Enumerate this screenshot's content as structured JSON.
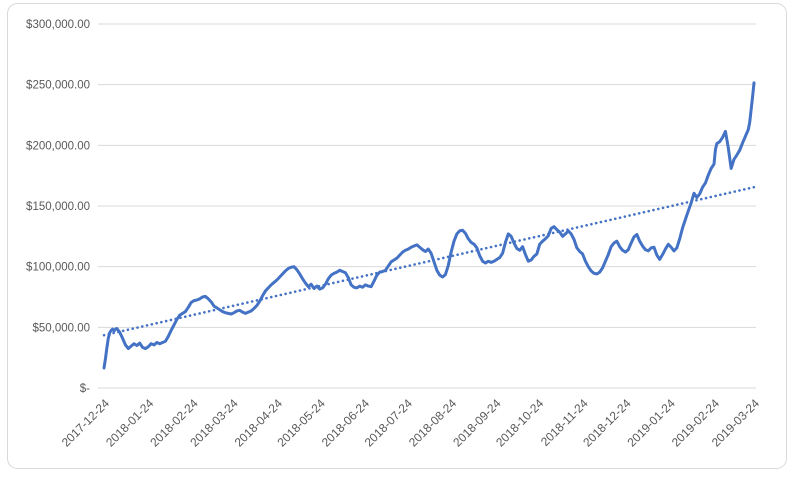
{
  "chart": {
    "title": "",
    "legend": "none",
    "colors": {
      "background": "#ffffff",
      "chart_border": "#d9d9d9",
      "gridline": "#d9d9d9",
      "axis_line": "#d9d9d9",
      "tick_label": "#595959",
      "series_line": "#4472c4",
      "trendline": "#4472c4"
    }
  },
  "chart_data": {
    "type": "line",
    "title": "",
    "xlabel": "",
    "ylabel": "",
    "grid": true,
    "legend_position": "none",
    "ylim": [
      0,
      300000
    ],
    "y_axis": {
      "tick_values": [
        300000,
        250000,
        200000,
        150000,
        100000,
        50000,
        0
      ],
      "tick_labels": [
        "$300,000.00",
        "$250,000.00",
        "$200,000.00",
        "$150,000.00",
        "$100,000.00",
        "$50,000.00",
        "$-"
      ]
    },
    "x_axis": {
      "start_date": "2017-12-24",
      "end_date": "2019-03-24",
      "label_rotation_deg": 45,
      "tick_labels": [
        "2017-12-24",
        "2018-01-24",
        "2018-02-24",
        "2018-03-24",
        "2018-04-24",
        "2018-05-24",
        "2018-06-24",
        "2018-07-24",
        "2018-08-24",
        "2018-09-24",
        "2018-10-24",
        "2018-11-24",
        "2018-12-24",
        "2019-01-24",
        "2019-02-24",
        "2019-03-24"
      ]
    },
    "series": [
      {
        "name": "value",
        "type": "line",
        "color": "#4472c4",
        "points": [
          [
            "2017-12-24",
            16500
          ],
          [
            "2017-12-25",
            24000
          ],
          [
            "2017-12-26",
            33000
          ],
          [
            "2017-12-27",
            41000
          ],
          [
            "2017-12-28",
            45500
          ],
          [
            "2017-12-29",
            47500
          ],
          [
            "2017-12-30",
            48500
          ],
          [
            "2017-12-31",
            47000
          ],
          [
            "2018-01-01",
            48500
          ],
          [
            "2018-01-02",
            49000
          ],
          [
            "2018-01-03",
            47500
          ],
          [
            "2018-01-04",
            46000
          ],
          [
            "2018-01-06",
            41000
          ],
          [
            "2018-01-08",
            35500
          ],
          [
            "2018-01-10",
            32500
          ],
          [
            "2018-01-12",
            34500
          ],
          [
            "2018-01-14",
            36500
          ],
          [
            "2018-01-16",
            35000
          ],
          [
            "2018-01-18",
            37000
          ],
          [
            "2018-01-20",
            33500
          ],
          [
            "2018-01-22",
            32500
          ],
          [
            "2018-01-24",
            34000
          ],
          [
            "2018-01-26",
            36500
          ],
          [
            "2018-01-28",
            35500
          ],
          [
            "2018-01-30",
            37500
          ],
          [
            "2018-02-01",
            36500
          ],
          [
            "2018-02-03",
            37500
          ],
          [
            "2018-02-05",
            38500
          ],
          [
            "2018-02-07",
            42500
          ],
          [
            "2018-02-09",
            47500
          ],
          [
            "2018-02-11",
            52000
          ],
          [
            "2018-02-13",
            56500
          ],
          [
            "2018-02-15",
            60000
          ],
          [
            "2018-02-17",
            61500
          ],
          [
            "2018-02-19",
            63000
          ],
          [
            "2018-02-21",
            66500
          ],
          [
            "2018-02-23",
            70500
          ],
          [
            "2018-02-25",
            72000
          ],
          [
            "2018-02-27",
            72500
          ],
          [
            "2018-03-01",
            73500
          ],
          [
            "2018-03-03",
            75000
          ],
          [
            "2018-03-05",
            75500
          ],
          [
            "2018-03-07",
            73500
          ],
          [
            "2018-03-09",
            71000
          ],
          [
            "2018-03-11",
            67500
          ],
          [
            "2018-03-13",
            66000
          ],
          [
            "2018-03-15",
            64500
          ],
          [
            "2018-03-17",
            63000
          ],
          [
            "2018-03-19",
            62000
          ],
          [
            "2018-03-21",
            61500
          ],
          [
            "2018-03-23",
            61000
          ],
          [
            "2018-03-25",
            62000
          ],
          [
            "2018-03-27",
            63500
          ],
          [
            "2018-03-29",
            64000
          ],
          [
            "2018-03-31",
            62500
          ],
          [
            "2018-04-02",
            61500
          ],
          [
            "2018-04-04",
            62500
          ],
          [
            "2018-04-06",
            63500
          ],
          [
            "2018-04-08",
            65500
          ],
          [
            "2018-04-10",
            68000
          ],
          [
            "2018-04-12",
            71500
          ],
          [
            "2018-04-14",
            76000
          ],
          [
            "2018-04-16",
            80000
          ],
          [
            "2018-04-18",
            82500
          ],
          [
            "2018-04-20",
            85000
          ],
          [
            "2018-04-22",
            87000
          ],
          [
            "2018-04-24",
            89000
          ],
          [
            "2018-04-26",
            91500
          ],
          [
            "2018-04-28",
            94000
          ],
          [
            "2018-04-30",
            96500
          ],
          [
            "2018-05-02",
            98500
          ],
          [
            "2018-05-04",
            99500
          ],
          [
            "2018-05-06",
            100000
          ],
          [
            "2018-05-08",
            97500
          ],
          [
            "2018-05-10",
            94000
          ],
          [
            "2018-05-12",
            90000
          ],
          [
            "2018-05-14",
            86500
          ],
          [
            "2018-05-16",
            83500
          ],
          [
            "2018-05-18",
            85500
          ],
          [
            "2018-05-20",
            82000
          ],
          [
            "2018-05-22",
            84000
          ],
          [
            "2018-05-24",
            81500
          ],
          [
            "2018-05-26",
            82500
          ],
          [
            "2018-05-28",
            85500
          ],
          [
            "2018-05-30",
            90000
          ],
          [
            "2018-06-01",
            93000
          ],
          [
            "2018-06-03",
            94500
          ],
          [
            "2018-06-05",
            95500
          ],
          [
            "2018-06-07",
            97000
          ],
          [
            "2018-06-09",
            96000
          ],
          [
            "2018-06-11",
            95000
          ],
          [
            "2018-06-13",
            91000
          ],
          [
            "2018-06-15",
            85000
          ],
          [
            "2018-06-17",
            83000
          ],
          [
            "2018-06-19",
            82500
          ],
          [
            "2018-06-21",
            84000
          ],
          [
            "2018-06-23",
            83000
          ],
          [
            "2018-06-25",
            85000
          ],
          [
            "2018-06-27",
            84000
          ],
          [
            "2018-06-29",
            83500
          ],
          [
            "2018-07-01",
            88000
          ],
          [
            "2018-07-03",
            93000
          ],
          [
            "2018-07-05",
            95500
          ],
          [
            "2018-07-07",
            96000
          ],
          [
            "2018-07-09",
            97000
          ],
          [
            "2018-07-11",
            100500
          ],
          [
            "2018-07-13",
            104000
          ],
          [
            "2018-07-15",
            105500
          ],
          [
            "2018-07-17",
            107000
          ],
          [
            "2018-07-19",
            109500
          ],
          [
            "2018-07-21",
            112000
          ],
          [
            "2018-07-23",
            113500
          ],
          [
            "2018-07-25",
            114500
          ],
          [
            "2018-07-27",
            116000
          ],
          [
            "2018-07-29",
            117000
          ],
          [
            "2018-07-31",
            118000
          ],
          [
            "2018-08-02",
            116000
          ],
          [
            "2018-08-04",
            114000
          ],
          [
            "2018-08-06",
            112500
          ],
          [
            "2018-08-08",
            114500
          ],
          [
            "2018-08-10",
            111000
          ],
          [
            "2018-08-12",
            104000
          ],
          [
            "2018-08-14",
            97000
          ],
          [
            "2018-08-16",
            93000
          ],
          [
            "2018-08-18",
            91500
          ],
          [
            "2018-08-20",
            93500
          ],
          [
            "2018-08-22",
            101000
          ],
          [
            "2018-08-24",
            112000
          ],
          [
            "2018-08-26",
            121000
          ],
          [
            "2018-08-28",
            127000
          ],
          [
            "2018-08-30",
            129500
          ],
          [
            "2018-09-01",
            130000
          ],
          [
            "2018-09-03",
            127500
          ],
          [
            "2018-09-05",
            123000
          ],
          [
            "2018-09-07",
            120000
          ],
          [
            "2018-09-09",
            118500
          ],
          [
            "2018-09-11",
            115500
          ],
          [
            "2018-09-13",
            109000
          ],
          [
            "2018-09-15",
            104500
          ],
          [
            "2018-09-17",
            103000
          ],
          [
            "2018-09-19",
            104500
          ],
          [
            "2018-09-21",
            103500
          ],
          [
            "2018-09-23",
            104500
          ],
          [
            "2018-09-25",
            106000
          ],
          [
            "2018-09-27",
            107500
          ],
          [
            "2018-09-29",
            111000
          ],
          [
            "2018-10-01",
            120000
          ],
          [
            "2018-10-03",
            127000
          ],
          [
            "2018-10-05",
            125000
          ],
          [
            "2018-10-07",
            119500
          ],
          [
            "2018-10-09",
            115000
          ],
          [
            "2018-10-11",
            113500
          ],
          [
            "2018-10-13",
            116500
          ],
          [
            "2018-10-15",
            110000
          ],
          [
            "2018-10-17",
            104500
          ],
          [
            "2018-10-19",
            105500
          ],
          [
            "2018-10-21",
            108500
          ],
          [
            "2018-10-23",
            110500
          ],
          [
            "2018-10-25",
            118500
          ],
          [
            "2018-10-27",
            121000
          ],
          [
            "2018-10-29",
            123000
          ],
          [
            "2018-10-31",
            125500
          ],
          [
            "2018-11-02",
            131500
          ],
          [
            "2018-11-04",
            133000
          ],
          [
            "2018-11-06",
            130500
          ],
          [
            "2018-11-08",
            128500
          ],
          [
            "2018-11-10",
            125000
          ],
          [
            "2018-11-12",
            127000
          ],
          [
            "2018-11-14",
            129500
          ],
          [
            "2018-11-16",
            127000
          ],
          [
            "2018-11-18",
            122500
          ],
          [
            "2018-11-20",
            115500
          ],
          [
            "2018-11-22",
            112500
          ],
          [
            "2018-11-24",
            110500
          ],
          [
            "2018-11-26",
            104500
          ],
          [
            "2018-11-28",
            100000
          ],
          [
            "2018-11-30",
            96500
          ],
          [
            "2018-12-02",
            94500
          ],
          [
            "2018-12-04",
            94000
          ],
          [
            "2018-12-06",
            95500
          ],
          [
            "2018-12-08",
            99000
          ],
          [
            "2018-12-10",
            104500
          ],
          [
            "2018-12-12",
            110000
          ],
          [
            "2018-12-14",
            116500
          ],
          [
            "2018-12-16",
            119500
          ],
          [
            "2018-12-18",
            121000
          ],
          [
            "2018-12-20",
            116500
          ],
          [
            "2018-12-22",
            113500
          ],
          [
            "2018-12-24",
            112000
          ],
          [
            "2018-12-26",
            114000
          ],
          [
            "2018-12-28",
            119500
          ],
          [
            "2018-12-30",
            124500
          ],
          [
            "2019-01-01",
            126500
          ],
          [
            "2019-01-03",
            121000
          ],
          [
            "2019-01-05",
            117000
          ],
          [
            "2019-01-07",
            114000
          ],
          [
            "2019-01-09",
            113000
          ],
          [
            "2019-01-11",
            115500
          ],
          [
            "2019-01-13",
            116000
          ],
          [
            "2019-01-15",
            109500
          ],
          [
            "2019-01-17",
            106000
          ],
          [
            "2019-01-19",
            110000
          ],
          [
            "2019-01-21",
            114500
          ],
          [
            "2019-01-23",
            118500
          ],
          [
            "2019-01-25",
            116000
          ],
          [
            "2019-01-27",
            113000
          ],
          [
            "2019-01-29",
            115500
          ],
          [
            "2019-01-31",
            123000
          ],
          [
            "2019-02-02",
            132000
          ],
          [
            "2019-02-04",
            139000
          ],
          [
            "2019-02-06",
            146000
          ],
          [
            "2019-02-08",
            152500
          ],
          [
            "2019-02-10",
            160500
          ],
          [
            "2019-02-12",
            157000
          ],
          [
            "2019-02-14",
            160000
          ],
          [
            "2019-02-16",
            165500
          ],
          [
            "2019-02-18",
            169000
          ],
          [
            "2019-02-20",
            175500
          ],
          [
            "2019-02-22",
            181000
          ],
          [
            "2019-02-24",
            184500
          ],
          [
            "2019-02-25",
            196500
          ],
          [
            "2019-02-26",
            201500
          ],
          [
            "2019-02-28",
            203000
          ],
          [
            "2019-03-02",
            206500
          ],
          [
            "2019-03-04",
            211500
          ],
          [
            "2019-03-06",
            198000
          ],
          [
            "2019-03-08",
            181000
          ],
          [
            "2019-03-10",
            188500
          ],
          [
            "2019-03-12",
            192000
          ],
          [
            "2019-03-14",
            196000
          ],
          [
            "2019-03-16",
            202000
          ],
          [
            "2019-03-18",
            207500
          ],
          [
            "2019-03-20",
            213000
          ],
          [
            "2019-03-21",
            219000
          ],
          [
            "2019-03-22",
            229500
          ],
          [
            "2019-03-23",
            240000
          ],
          [
            "2019-03-24",
            251500
          ]
        ]
      }
    ],
    "trendline": {
      "type": "linear",
      "style": "dotted",
      "color": "#4472c4",
      "start_date": "2017-12-24",
      "start_value": 43500,
      "end_date": "2019-03-24",
      "end_value": 165500
    }
  }
}
